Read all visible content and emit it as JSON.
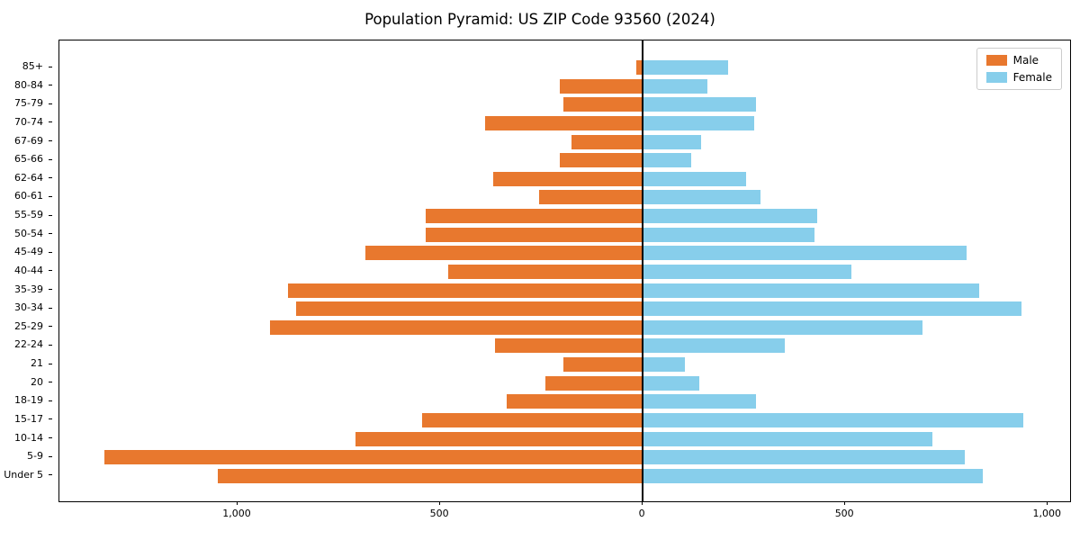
{
  "chart_data": {
    "type": "bar",
    "orientation": "horizontal-pyramid",
    "title": "Population Pyramid: US ZIP Code 93560 (2024)",
    "categories_top_to_bottom": [
      "85+",
      "80-84",
      "75-79",
      "70-74",
      "67-69",
      "65-66",
      "62-64",
      "60-61",
      "55-59",
      "50-54",
      "45-49",
      "40-44",
      "35-39",
      "30-34",
      "25-29",
      "22-24",
      "21",
      "20",
      "18-19",
      "15-17",
      "10-14",
      "5-9",
      "Under 5"
    ],
    "series": [
      {
        "name": "Male",
        "side": "left",
        "color": "#e8782e",
        "values": [
          15,
          205,
          195,
          390,
          175,
          205,
          370,
          255,
          535,
          535,
          685,
          480,
          875,
          855,
          920,
          365,
          195,
          240,
          335,
          545,
          710,
          1330,
          1050
        ]
      },
      {
        "name": "Female",
        "side": "right",
        "color": "#87ceeb",
        "values": [
          210,
          160,
          280,
          275,
          145,
          120,
          255,
          290,
          430,
          425,
          800,
          515,
          830,
          935,
          690,
          350,
          105,
          140,
          280,
          940,
          715,
          795,
          840
        ]
      }
    ],
    "xlim": [
      -1440,
      1055
    ],
    "x_ticks": [
      {
        "label": "1,000",
        "value": -1000
      },
      {
        "label": "500",
        "value": -500
      },
      {
        "label": "0",
        "value": 0
      },
      {
        "label": "500",
        "value": 500
      },
      {
        "label": "1,000",
        "value": 1000
      }
    ],
    "grid": false,
    "legend_position": "upper-right",
    "xlabel": "",
    "ylabel": ""
  }
}
